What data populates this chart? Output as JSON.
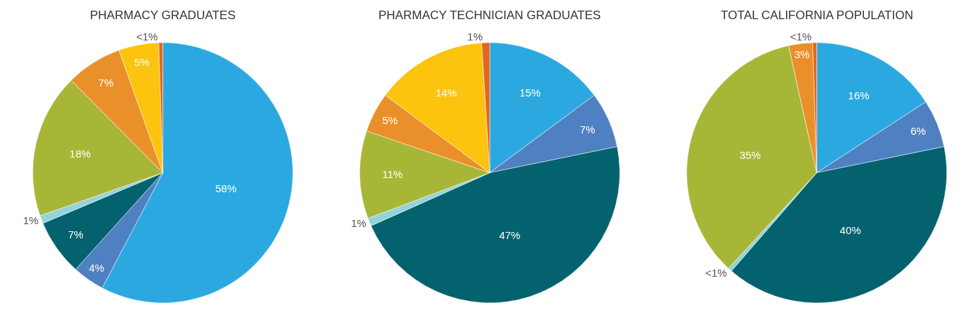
{
  "chart_data": [
    {
      "type": "pie",
      "title": "PHARMACY GRADUATES",
      "categories": [
        null,
        null,
        null,
        null,
        null,
        null,
        null,
        null
      ],
      "values": [
        58,
        4,
        7,
        1,
        18,
        7,
        5,
        0.5
      ],
      "value_labels": [
        "58%",
        "4%",
        "7%",
        "1%",
        "18%",
        "7%",
        "5%",
        "<1%"
      ],
      "colors": [
        "#2ca8e0",
        "#4f80c1",
        "#03626e",
        "#93d4dc",
        "#a8b637",
        "#ea902b",
        "#fcc30f",
        "#e2661f"
      ],
      "legend": false
    },
    {
      "type": "pie",
      "title": "PHARMACY TECHNICIAN GRADUATES",
      "categories": [
        null,
        null,
        null,
        null,
        null,
        null,
        null,
        null
      ],
      "values": [
        15,
        7,
        47,
        1,
        11,
        5,
        14,
        1
      ],
      "value_labels": [
        "15%",
        "7%",
        "47%",
        "1%",
        "11%",
        "5%",
        "14%",
        "1%"
      ],
      "colors": [
        "#2ca8e0",
        "#4f80c1",
        "#03626e",
        "#93d4dc",
        "#a8b637",
        "#ea902b",
        "#fcc30f",
        "#e2661f"
      ],
      "legend": false
    },
    {
      "type": "pie",
      "title": "TOTAL CALIFORNIA POPULATION",
      "categories": [
        null,
        null,
        null,
        null,
        null,
        null,
        null
      ],
      "values": [
        16,
        6,
        40,
        0.5,
        35,
        3,
        0.5
      ],
      "value_labels": [
        "16%",
        "6%",
        "40%",
        "<1%",
        "35%",
        "3%",
        "<1%"
      ],
      "colors": [
        "#2ca8e0",
        "#4f80c1",
        "#03626e",
        "#93d4dc",
        "#a8b637",
        "#ea902b",
        "#e2661f"
      ],
      "legend": false
    }
  ]
}
